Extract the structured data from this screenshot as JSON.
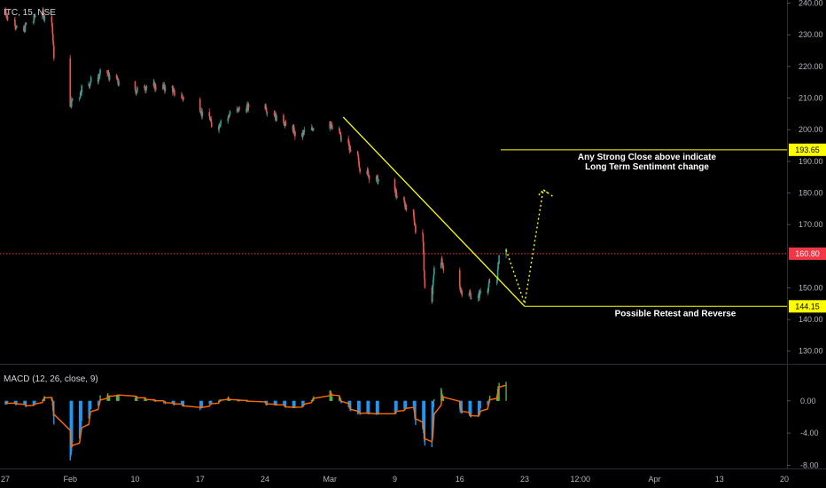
{
  "symbol_label": "ITC, 15, NSE",
  "macd_label": "MACD (12, 26, close, 9)",
  "colors": {
    "background": "#000000",
    "up": "#26a69a",
    "down": "#ef5350",
    "annotation": "#ffff00",
    "price_line": "#f23645",
    "macd_hist": "#2196f3",
    "macd_hist_pos": "#4caf50",
    "macd_line": "#ff6d00",
    "axis_text": "#b2b5be"
  },
  "annotations": {
    "resistance_text": [
      "Any Strong  Close above indicate",
      "Long Term Sentiment change"
    ],
    "support_text": "Possible Retest and Reverse",
    "resistance_level": 193.65,
    "support_level": 144.15,
    "current_price": 160.8
  },
  "chart_data": [
    {
      "type": "line",
      "title": "ITC, 15, NSE",
      "ylim": [
        126,
        241
      ],
      "yticks": [
        "240.00",
        "230.00",
        "220.00",
        "210.00",
        "200.00",
        "190.00",
        "180.00",
        "170.00",
        "150.00",
        "140.00",
        "130.00"
      ],
      "xticks": [
        "27",
        "Feb",
        "10",
        "17",
        "24",
        "Mar",
        "9",
        "16",
        "23",
        "12:00",
        "Apr",
        "13",
        "20"
      ],
      "xlim": [
        "2020-01-27",
        "2020-04-20"
      ],
      "series": [
        {
          "values_by_date": [
            [
              "2020-01-27",
              238
            ],
            [
              "2020-01-29",
              231
            ],
            [
              "2020-01-31",
              237
            ],
            [
              "2020-02-01",
              235
            ],
            [
              "2020-02-03",
              207
            ],
            [
              "2020-02-05",
              214
            ],
            [
              "2020-02-07",
              218
            ],
            [
              "2020-02-10",
              212
            ],
            [
              "2020-02-12",
              214
            ],
            [
              "2020-02-14",
              213
            ],
            [
              "2020-02-17",
              207
            ],
            [
              "2020-02-19",
              201
            ],
            [
              "2020-02-21",
              206
            ],
            [
              "2020-02-24",
              208
            ],
            [
              "2020-02-26",
              203
            ],
            [
              "2020-02-28",
              198
            ],
            [
              "2020-03-02",
              203
            ],
            [
              "2020-03-04",
              196
            ],
            [
              "2020-03-06",
              187
            ],
            [
              "2020-03-09",
              181
            ],
            [
              "2020-03-11",
              174
            ],
            [
              "2020-03-12",
              167
            ],
            [
              "2020-03-13",
              146
            ],
            [
              "2020-03-14",
              159
            ],
            [
              "2020-03-16",
              150
            ],
            [
              "2020-03-18",
              147
            ],
            [
              "2020-03-20",
              152
            ],
            [
              "2020-03-21",
              162
            ]
          ]
        }
      ],
      "projection": [
        [
          "2020-03-21",
          162
        ],
        [
          "2020-03-23",
          145
        ],
        [
          "2020-03-25",
          181
        ],
        [
          "2020-03-26",
          179
        ]
      ],
      "trendline": [
        [
          "2020-03-02",
          204
        ],
        [
          "2020-03-23",
          144.15
        ]
      ],
      "hlines": [
        {
          "value": 193.65,
          "label": "193.65",
          "from": "2020-03-16"
        },
        {
          "value": 144.15,
          "label": "144.15",
          "from": "2020-03-23"
        },
        {
          "value": 160.8,
          "label": "160.80",
          "style": "dotted"
        }
      ]
    },
    {
      "type": "bar",
      "title": "MACD (12, 26, close, 9)",
      "ylim": [
        -8.4,
        4.5
      ],
      "yticks": [
        "0.00",
        "-4.00",
        "-8.00"
      ],
      "series": [
        {
          "name": "MACD",
          "values_by_date": [
            [
              "2020-01-27",
              -0.3
            ],
            [
              "2020-01-30",
              -0.6
            ],
            [
              "2020-02-01",
              0.6
            ],
            [
              "2020-02-03",
              -7.5
            ],
            [
              "2020-02-05",
              -2
            ],
            [
              "2020-02-07",
              0.8
            ],
            [
              "2020-02-10",
              0.5
            ],
            [
              "2020-02-14",
              -0.3
            ],
            [
              "2020-02-17",
              -1
            ],
            [
              "2020-02-20",
              0.4
            ],
            [
              "2020-02-24",
              -0.4
            ],
            [
              "2020-02-28",
              -0.8
            ],
            [
              "2020-03-02",
              1.4
            ],
            [
              "2020-03-05",
              -1.6
            ],
            [
              "2020-03-09",
              -1.5
            ],
            [
              "2020-03-11",
              -0.8
            ],
            [
              "2020-03-13",
              -5.8
            ],
            [
              "2020-03-14",
              1.5
            ],
            [
              "2020-03-16",
              -1.2
            ],
            [
              "2020-03-18",
              -2
            ],
            [
              "2020-03-20",
              0.8
            ],
            [
              "2020-03-21",
              2.5
            ]
          ]
        }
      ]
    }
  ]
}
